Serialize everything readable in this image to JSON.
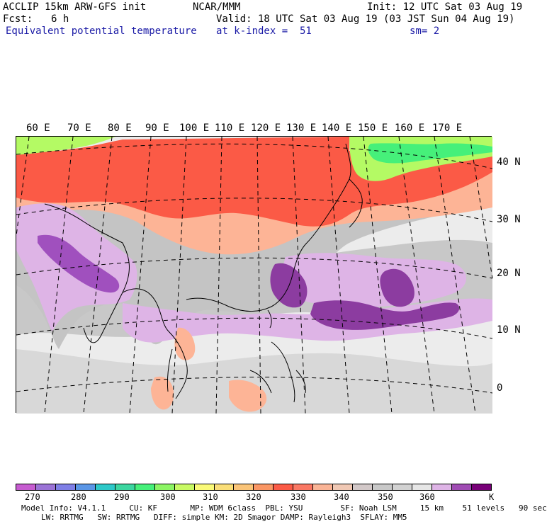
{
  "header": {
    "model_name": "ACCLIP 15km ARW-GFS init",
    "org": "NCAR/MMM",
    "init": "Init: 12 UTC Sat 03 Aug 19",
    "fcst_label": "Fcst:",
    "fcst_value": "6 h",
    "valid": "Valid: 18 UTC Sat 03 Aug 19 (03 JST Sun 04 Aug 19)",
    "field": "Equivalent potential temperature",
    "level": "at k-index =  51",
    "smoothing": "sm= 2"
  },
  "map": {
    "lon_labels": [
      "60 E",
      "70 E",
      "80 E",
      "90 E",
      "100 E",
      "110 E",
      "120 E",
      "130 E",
      "140 E",
      "150 E",
      "160 E",
      "170 E"
    ],
    "lat_labels": [
      "40 N",
      "30 N",
      "20 N",
      "10 N",
      "0"
    ],
    "colors": {
      "ocean_bg": "#ececec",
      "land_grey": "#c8c8c8",
      "red": "#fb5a46",
      "orange": "#fdb496",
      "light_purple": "#deb4e6",
      "mid_purple": "#a050be",
      "deep_purple": "#8c3ca0",
      "green": "#46f07a",
      "yellow_green": "#b4fa64"
    }
  },
  "colorbar": {
    "colors": [
      "#c65cd0",
      "#9b73d6",
      "#7f7fe6",
      "#5a96e6",
      "#2ec8c8",
      "#3cd6a0",
      "#46f07a",
      "#8cf564",
      "#c8fa64",
      "#fafa78",
      "#fade78",
      "#fac478",
      "#fa9664",
      "#fb5a46",
      "#fa7864",
      "#fab496",
      "#f0c8b4",
      "#d2c8c8",
      "#c8c8c8",
      "#d2d2d2",
      "#e6e6e6",
      "#deb4e6",
      "#a04cb4",
      "#780078"
    ],
    "labels": [
      "270",
      "280",
      "290",
      "300",
      "310",
      "320",
      "330",
      "340",
      "350",
      "360"
    ],
    "unit": "K"
  },
  "footer": {
    "line1": "Model Info: V4.1.1     CU: KF       MP: WDM 6class  PBL: YSU        SF: Noah LSM     15 km    51 levels   90 sec",
    "line2": "LW: RRTMG   SW: RRTMG   DIFF: simple KM: 2D Smagor DAMP: Rayleigh3  SFLAY: MM5"
  }
}
